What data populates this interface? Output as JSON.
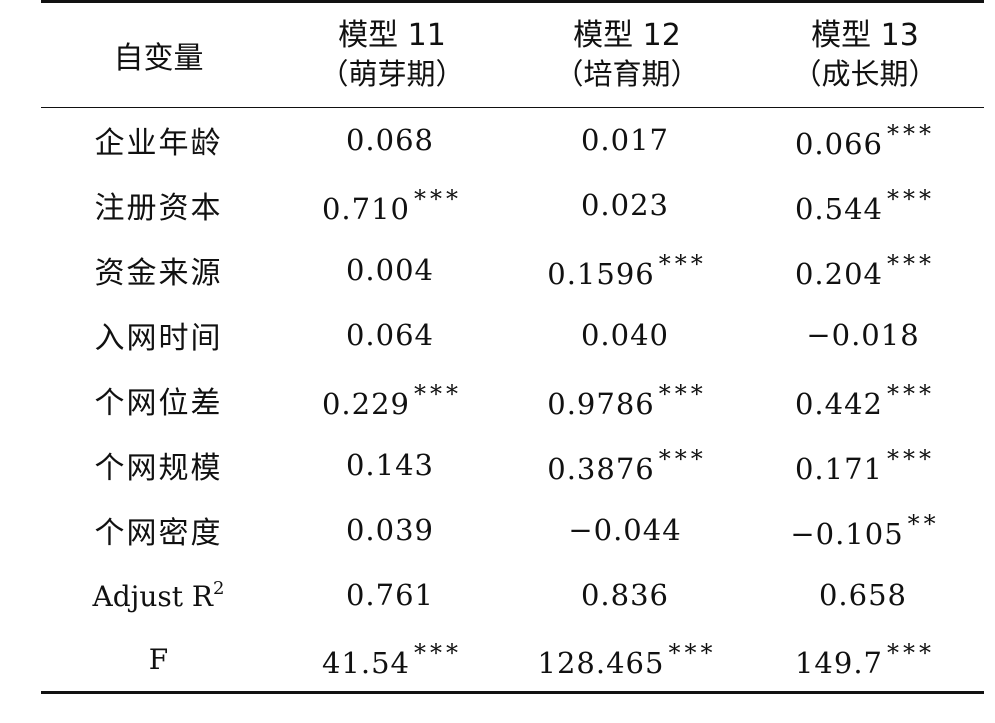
{
  "table": {
    "header": {
      "variable_label": "自变量",
      "models": [
        {
          "name": "模型 11",
          "stage": "（萌芽期）"
        },
        {
          "name": "模型 12",
          "stage": "（培育期）"
        },
        {
          "name": "模型 13",
          "stage": "（成长期）"
        }
      ]
    },
    "rows": [
      {
        "label": "企业年龄",
        "cells": [
          {
            "v": "0.068",
            "s": ""
          },
          {
            "v": "0.017",
            "s": ""
          },
          {
            "v": "0.066",
            "s": "***"
          }
        ]
      },
      {
        "label": "注册资本",
        "cells": [
          {
            "v": "0.710",
            "s": "***"
          },
          {
            "v": "0.023",
            "s": ""
          },
          {
            "v": "0.544",
            "s": "***"
          }
        ]
      },
      {
        "label": "资金来源",
        "cells": [
          {
            "v": "0.004",
            "s": ""
          },
          {
            "v": "0.1596",
            "s": "***"
          },
          {
            "v": "0.204",
            "s": "***"
          }
        ]
      },
      {
        "label": "入网时间",
        "cells": [
          {
            "v": "0.064",
            "s": ""
          },
          {
            "v": "0.040",
            "s": ""
          },
          {
            "v": "−0.018",
            "s": ""
          }
        ]
      },
      {
        "label": "个网位差",
        "cells": [
          {
            "v": "0.229",
            "s": "***"
          },
          {
            "v": "0.9786",
            "s": "***"
          },
          {
            "v": "0.442",
            "s": "***"
          }
        ]
      },
      {
        "label": "个网规模",
        "cells": [
          {
            "v": "0.143",
            "s": ""
          },
          {
            "v": "0.3876",
            "s": "***"
          },
          {
            "v": "0.171",
            "s": "***"
          }
        ]
      },
      {
        "label": "个网密度",
        "cells": [
          {
            "v": "0.039",
            "s": ""
          },
          {
            "v": "−0.044",
            "s": ""
          },
          {
            "v": "−0.105",
            "s": "**"
          }
        ]
      },
      {
        "label": "Adjust R",
        "label_sup": "2",
        "cells": [
          {
            "v": "0.761",
            "s": ""
          },
          {
            "v": "0.836",
            "s": ""
          },
          {
            "v": "0.658",
            "s": ""
          }
        ]
      },
      {
        "label": "F",
        "cells": [
          {
            "v": "41.54",
            "s": "***"
          },
          {
            "v": "128.465",
            "s": "***"
          },
          {
            "v": "149.7",
            "s": "***"
          }
        ]
      }
    ]
  }
}
